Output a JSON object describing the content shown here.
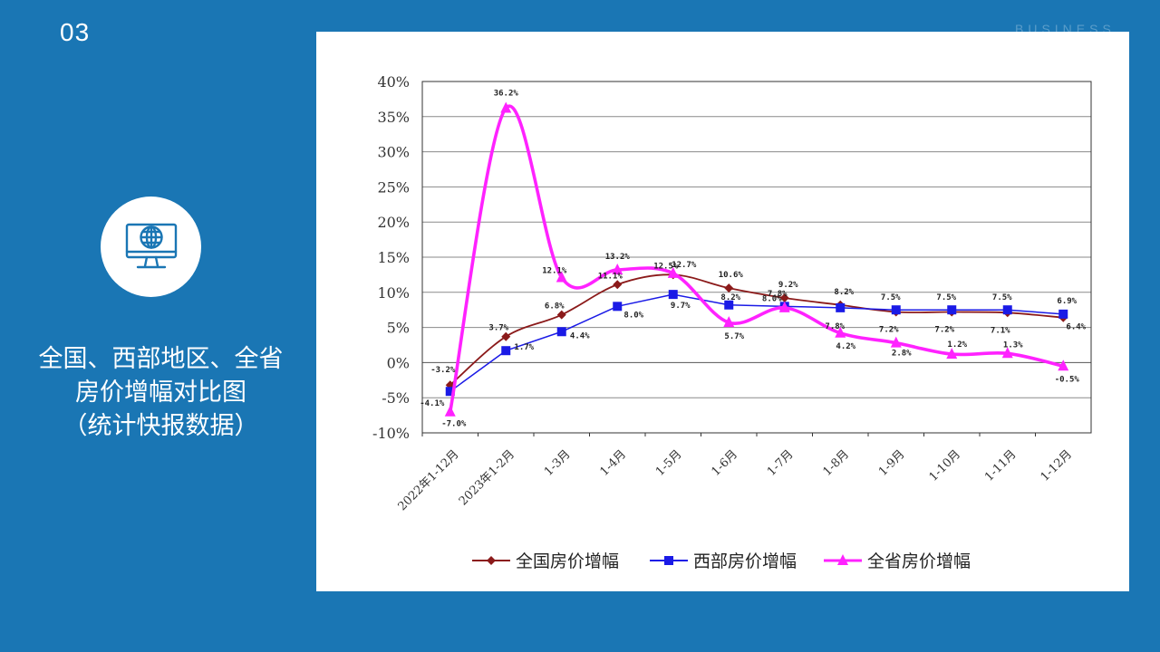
{
  "slide": {
    "number": "03",
    "watermark": "BUSINESS",
    "title_lines": [
      "全国、西部地区、全省",
      "房价增幅对比图",
      "（统计快报数据）"
    ]
  },
  "icon": {
    "name": "globe-monitor-icon",
    "color": "#1A76B4"
  },
  "colors": {
    "background": "#1A76B4",
    "panel": "#ffffff"
  },
  "chart_data": {
    "type": "line",
    "categories": [
      "2022年1-12月",
      "2023年1-2月",
      "1-3月",
      "1-4月",
      "1-5月",
      "1-6月",
      "1-7月",
      "1-8月",
      "1-9月",
      "1-10月",
      "1-11月",
      "1-12月"
    ],
    "ylim": [
      -10,
      40
    ],
    "yticks": [
      40,
      35,
      30,
      25,
      20,
      15,
      10,
      5,
      0,
      -5,
      -10
    ],
    "ytick_labels": [
      "40%",
      "35%",
      "30%",
      "25%",
      "20%",
      "15%",
      "10%",
      "5%",
      "0%",
      "-5%",
      "-10%"
    ],
    "grid": true,
    "legend": "bottom",
    "series": [
      {
        "name": "全国房价增幅",
        "color": "#8B1A1A",
        "marker": "diamond",
        "smooth": true,
        "values": [
          -3.2,
          3.7,
          6.8,
          11.1,
          12.5,
          10.6,
          9.2,
          8.2,
          7.2,
          7.2,
          7.1,
          6.4
        ],
        "labels": [
          "-3.2%",
          "3.7%",
          "6.8%",
          "11.1%",
          "12.5%",
          "10.6%",
          "9.2%",
          "8.2%",
          "7.2%",
          "7.2%",
          "7.1%",
          "6.4%"
        ]
      },
      {
        "name": "西部房价增幅",
        "color": "#1A1AE6",
        "marker": "square",
        "smooth": false,
        "values": [
          -4.1,
          1.7,
          4.4,
          8.0,
          9.7,
          8.2,
          8.0,
          7.8,
          7.5,
          7.5,
          7.5,
          6.9
        ],
        "labels": [
          "-4.1%",
          "1.7%",
          "4.4%",
          "8.0%",
          "9.7%",
          "8.2%",
          "8.0%",
          "7.8%",
          "7.5%",
          "7.5%",
          "7.5%",
          "6.9%"
        ]
      },
      {
        "name": "全省房价增幅",
        "color": "#FF22FF",
        "marker": "triangle",
        "smooth": true,
        "values": [
          -7.0,
          36.2,
          12.1,
          13.2,
          12.7,
          5.7,
          7.8,
          4.2,
          2.8,
          1.2,
          1.3,
          -0.5
        ],
        "labels": [
          "-7.0%",
          "36.2%",
          "12.1%",
          "13.2%",
          "12.7%",
          "5.7%",
          "7.8%",
          "4.2%",
          "2.8%",
          "1.2%",
          "1.3%",
          "-0.5%"
        ]
      }
    ]
  }
}
